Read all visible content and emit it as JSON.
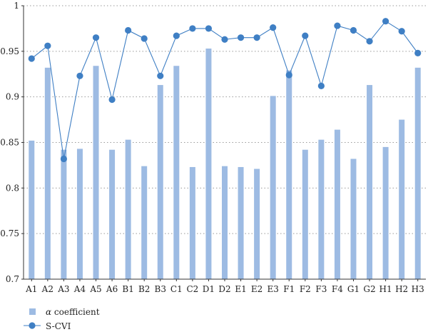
{
  "chart_data": {
    "type": "bar+line",
    "categories": [
      "A1",
      "A2",
      "A3",
      "A4",
      "A5",
      "A6",
      "B1",
      "B2",
      "B3",
      "C1",
      "C2",
      "D1",
      "D2",
      "E1",
      "E2",
      "E3",
      "F1",
      "F2",
      "F3",
      "F4",
      "G1",
      "G2",
      "H1",
      "H2",
      "H3"
    ],
    "series": [
      {
        "name": "α coefficient",
        "type": "bar",
        "color": "#9dbbe3",
        "values": [
          0.852,
          0.932,
          0.842,
          0.843,
          0.934,
          0.842,
          0.853,
          0.824,
          0.913,
          0.934,
          0.823,
          0.953,
          0.824,
          0.823,
          0.821,
          0.901,
          0.929,
          0.842,
          0.853,
          0.864,
          0.832,
          0.913,
          0.845,
          0.875,
          0.932
        ]
      },
      {
        "name": "S-CVI",
        "type": "line",
        "color": "#3f7fc4",
        "values": [
          0.942,
          0.956,
          0.832,
          0.923,
          0.965,
          0.897,
          0.973,
          0.964,
          0.923,
          0.967,
          0.975,
          0.975,
          0.963,
          0.965,
          0.965,
          0.976,
          0.924,
          0.967,
          0.912,
          0.978,
          0.973,
          0.961,
          0.983,
          0.972,
          0.948
        ]
      }
    ],
    "ylim": [
      0.7,
      1.0
    ],
    "yticks": [
      0.7,
      0.75,
      0.8,
      0.85,
      0.9,
      0.95,
      1.0
    ],
    "ytick_labels": [
      "0.7",
      "0.75",
      "0.8",
      "0.85",
      "0.9",
      "0.95",
      "1"
    ],
    "grid": "horizontal-dotted",
    "legend_position": "bottom-left",
    "legend": {
      "bar_prefix": "α",
      "bar_suffix": " coefficient",
      "line_label": "S-CVI"
    }
  }
}
